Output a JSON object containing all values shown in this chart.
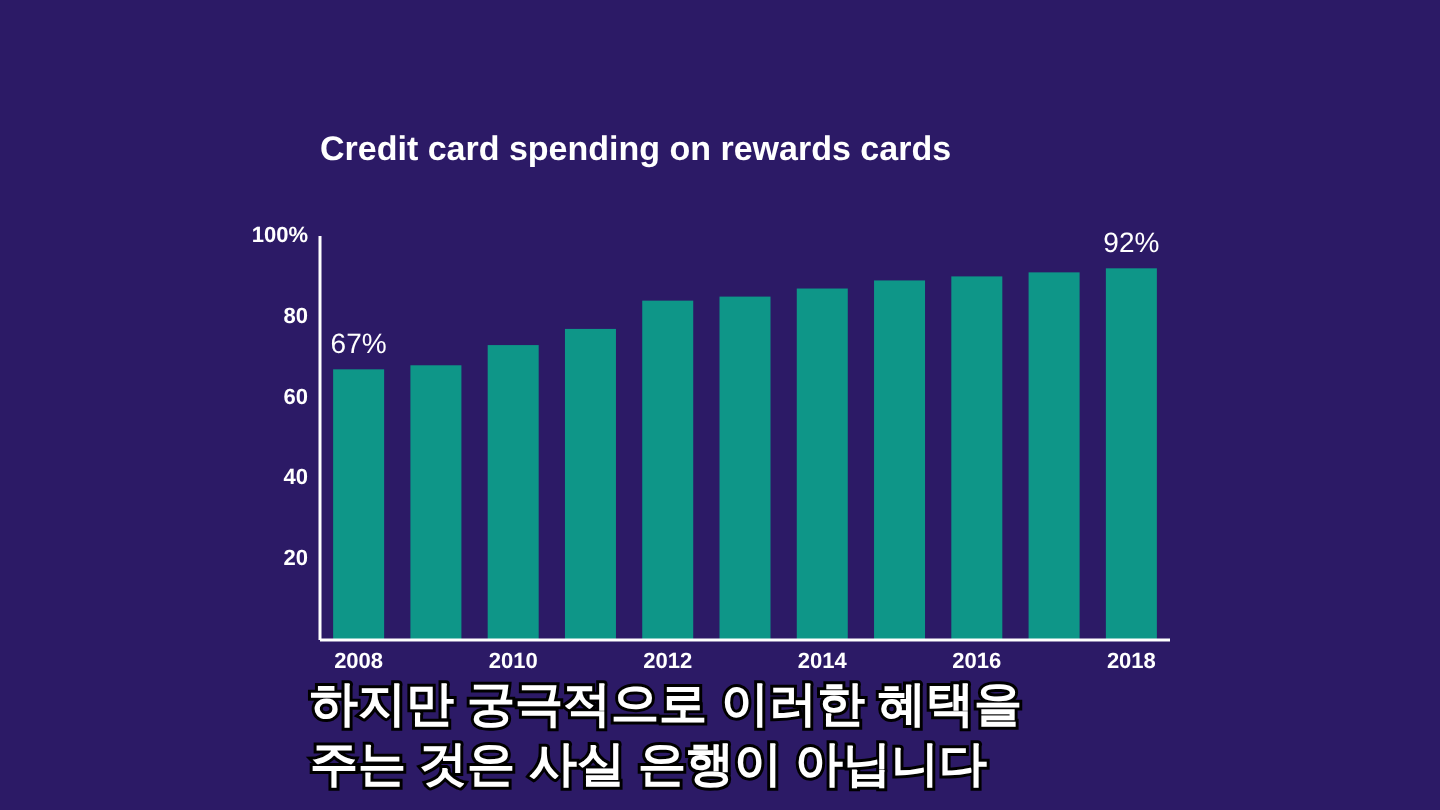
{
  "chart_data": {
    "type": "bar",
    "title": "Credit card spending on rewards cards",
    "categories": [
      "2008",
      null,
      "2010",
      null,
      "2012",
      null,
      "2014",
      null,
      "2016",
      null,
      "2018"
    ],
    "values": [
      67,
      68,
      73,
      77,
      84,
      85,
      87,
      89,
      90,
      91,
      92
    ],
    "value_labels": [
      "67%",
      null,
      null,
      null,
      null,
      null,
      null,
      null,
      null,
      null,
      "92%"
    ],
    "color": "#0e9688",
    "ylim": [
      0,
      100
    ],
    "yticks": [
      {
        "value": 20,
        "label": "20"
      },
      {
        "value": 40,
        "label": "40"
      },
      {
        "value": 60,
        "label": "60"
      },
      {
        "value": 80,
        "label": "80"
      },
      {
        "value": 100,
        "label": "100%"
      }
    ],
    "grid": false,
    "annotations": [
      "하지만 궁극적으로 이러한 혜택을",
      "주는 것은 사실 은행이 아닙니다"
    ]
  }
}
